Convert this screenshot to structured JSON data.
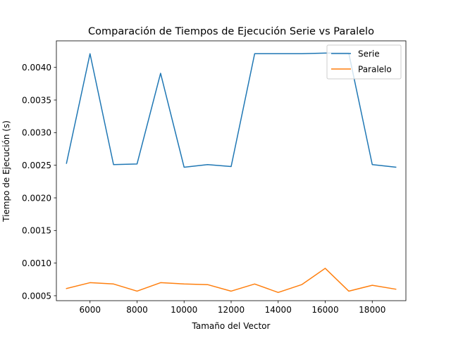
{
  "chart_data": {
    "type": "line",
    "title": "Comparación de Tiempos de Ejecución Serie vs Paralelo",
    "xlabel": "Tamaño del Vector",
    "ylabel": "Tiempo de Ejecución (s)",
    "x": [
      5000,
      6000,
      7000,
      8000,
      9000,
      10000,
      11000,
      12000,
      13000,
      14000,
      15000,
      16000,
      17000,
      18000,
      19000
    ],
    "xlim": [
      4570,
      19430
    ],
    "ylim": [
      0.000424,
      0.004407
    ],
    "xticks": [
      6000,
      8000,
      10000,
      12000,
      14000,
      16000,
      18000
    ],
    "yticks": [
      0.0005,
      0.001,
      0.0015,
      0.002,
      0.0025,
      0.003,
      0.0035,
      0.004
    ],
    "xtick_labels": [
      "6000",
      "8000",
      "10000",
      "12000",
      "14000",
      "16000",
      "18000"
    ],
    "ytick_labels": [
      "0.0005",
      "0.0010",
      "0.0015",
      "0.0020",
      "0.0025",
      "0.0030",
      "0.0035",
      "0.0040"
    ],
    "grid": false,
    "legend_position": "top-right",
    "series": [
      {
        "name": "Serie",
        "color": "#1f77b4",
        "values": [
          0.00253,
          0.00421,
          0.00251,
          0.00252,
          0.00391,
          0.00247,
          0.00251,
          0.00248,
          0.00421,
          0.00421,
          0.00421,
          0.00422,
          0.00422,
          0.00251,
          0.00247
        ]
      },
      {
        "name": "Paralelo",
        "color": "#ff7f0e",
        "values": [
          0.00061,
          0.0007,
          0.00068,
          0.00057,
          0.0007,
          0.00068,
          0.00067,
          0.00057,
          0.00068,
          0.00055,
          0.00067,
          0.00092,
          0.00057,
          0.00066,
          0.0006
        ]
      }
    ]
  }
}
